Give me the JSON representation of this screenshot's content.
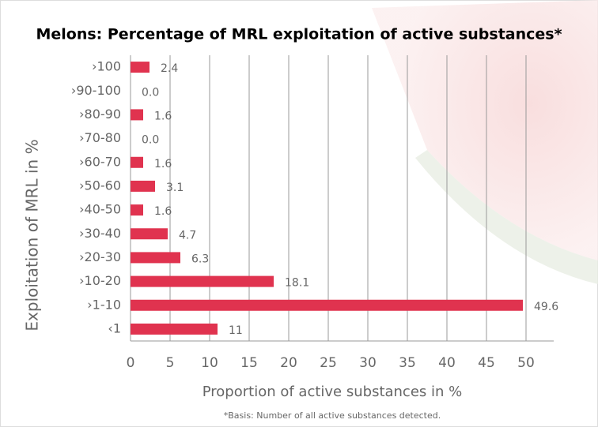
{
  "chart_data": {
    "type": "bar",
    "orientation": "horizontal",
    "title": "Melons: Percentage of MRL exploitation of active substances*",
    "x_label": "Proportion of active substances in %",
    "y_label": "Exploitation of MRL in %",
    "footnote": "*Basis: Number of all active substances detected.",
    "categories": [
      "›100",
      "›90-100",
      "›80-90",
      "›70-80",
      "›60-70",
      "›50-60",
      "›40-50",
      "›30-40",
      "›20-30",
      "›10-20",
      "›1-10",
      "‹1"
    ],
    "values": [
      2.4,
      0,
      1.6,
      0,
      1.6,
      3.1,
      1.6,
      4.7,
      6.3,
      18.1,
      49.6,
      11
    ],
    "value_labels": [
      "2.4",
      "0.0",
      "1.6",
      "0.0",
      "1.6",
      "3.1",
      "1.6",
      "4.7",
      "6.3",
      "18.1",
      "49.6",
      "11"
    ],
    "color": "#e0334f",
    "xlim": [
      0,
      53.5
    ],
    "xticks": [
      0,
      5,
      10,
      15,
      20,
      25,
      30,
      35,
      40,
      45,
      50
    ],
    "grid": true
  }
}
